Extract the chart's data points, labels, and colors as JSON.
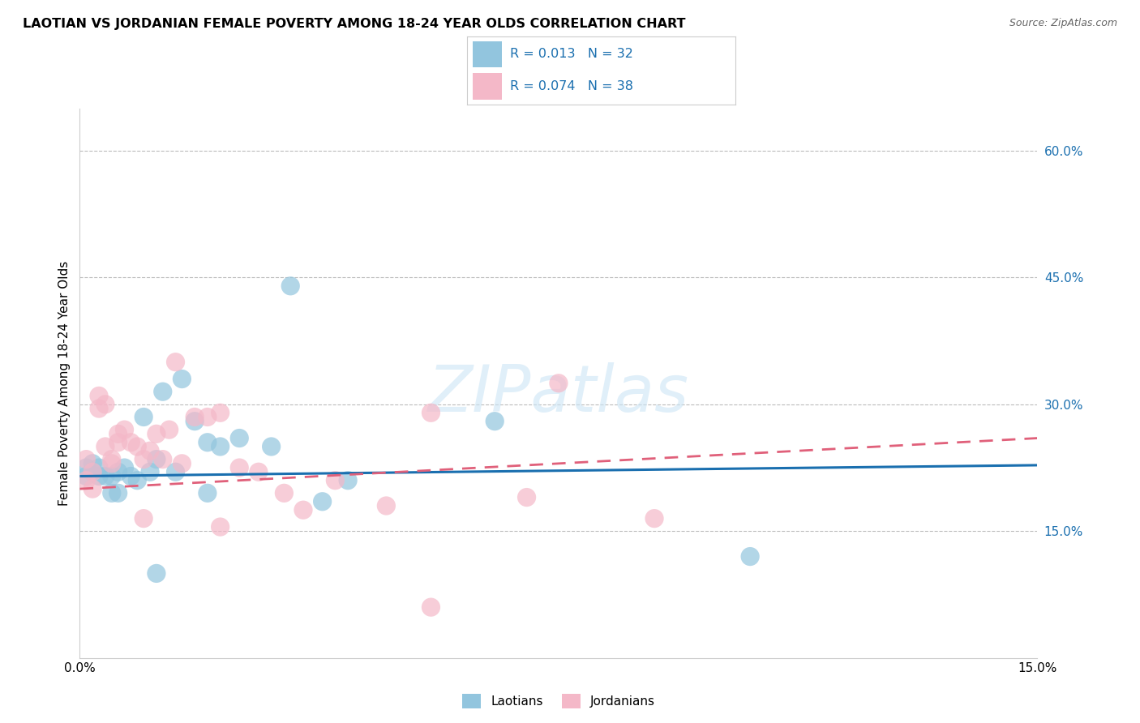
{
  "title": "LAOTIAN VS JORDANIAN FEMALE POVERTY AMONG 18-24 YEAR OLDS CORRELATION CHART",
  "source": "Source: ZipAtlas.com",
  "ylabel": "Female Poverty Among 18-24 Year Olds",
  "xlim": [
    0.0,
    0.15
  ],
  "ylim": [
    0.0,
    0.65
  ],
  "ytick_positions": [
    0.15,
    0.3,
    0.45,
    0.6
  ],
  "ytick_labels": [
    "15.0%",
    "30.0%",
    "45.0%",
    "60.0%"
  ],
  "laotian_color": "#92c5de",
  "jordanian_color": "#f4b8c8",
  "laotian_line_color": "#1a6faf",
  "jordanian_line_color": "#e0607a",
  "legend_color": "#1a6faf",
  "lao_line_x0": 0.0,
  "lao_line_y0": 0.215,
  "lao_line_x1": 0.15,
  "lao_line_y1": 0.228,
  "jor_line_x0": 0.0,
  "jor_line_y0": 0.2,
  "jor_line_x1": 0.15,
  "jor_line_y1": 0.26,
  "laotian_x": [
    0.001,
    0.001,
    0.002,
    0.002,
    0.003,
    0.003,
    0.004,
    0.005,
    0.005,
    0.006,
    0.006,
    0.007,
    0.008,
    0.009,
    0.01,
    0.011,
    0.012,
    0.013,
    0.015,
    0.016,
    0.018,
    0.02,
    0.022,
    0.025,
    0.03,
    0.033,
    0.038,
    0.042,
    0.065,
    0.105,
    0.02,
    0.012
  ],
  "laotian_y": [
    0.225,
    0.215,
    0.23,
    0.22,
    0.215,
    0.225,
    0.215,
    0.195,
    0.215,
    0.22,
    0.195,
    0.225,
    0.215,
    0.21,
    0.285,
    0.22,
    0.235,
    0.315,
    0.22,
    0.33,
    0.28,
    0.255,
    0.25,
    0.26,
    0.25,
    0.44,
    0.185,
    0.21,
    0.28,
    0.12,
    0.195,
    0.1
  ],
  "jordanian_x": [
    0.001,
    0.001,
    0.002,
    0.002,
    0.003,
    0.003,
    0.004,
    0.004,
    0.005,
    0.005,
    0.006,
    0.006,
    0.007,
    0.008,
    0.009,
    0.01,
    0.011,
    0.012,
    0.013,
    0.014,
    0.015,
    0.016,
    0.018,
    0.02,
    0.022,
    0.025,
    0.028,
    0.032,
    0.035,
    0.04,
    0.048,
    0.055,
    0.07,
    0.075,
    0.09,
    0.055,
    0.01,
    0.022
  ],
  "jordanian_y": [
    0.235,
    0.21,
    0.22,
    0.2,
    0.31,
    0.295,
    0.3,
    0.25,
    0.235,
    0.23,
    0.255,
    0.265,
    0.27,
    0.255,
    0.25,
    0.235,
    0.245,
    0.265,
    0.235,
    0.27,
    0.35,
    0.23,
    0.285,
    0.285,
    0.29,
    0.225,
    0.22,
    0.195,
    0.175,
    0.21,
    0.18,
    0.06,
    0.19,
    0.325,
    0.165,
    0.29,
    0.165,
    0.155
  ]
}
